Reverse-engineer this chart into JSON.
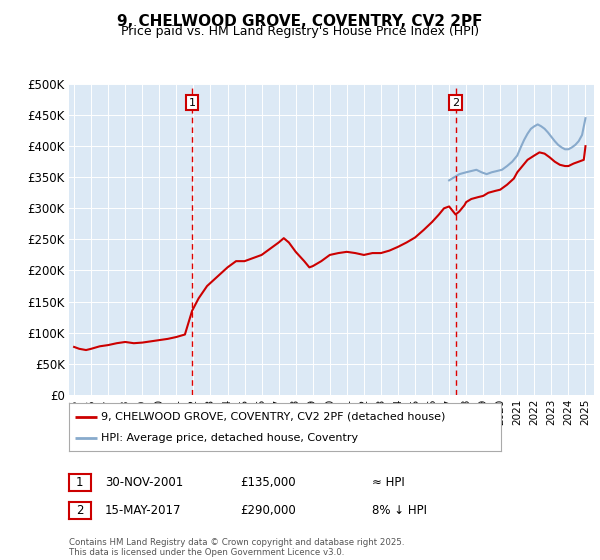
{
  "title": "9, CHELWOOD GROVE, COVENTRY, CV2 2PF",
  "subtitle": "Price paid vs. HM Land Registry's House Price Index (HPI)",
  "background_color": "#dce9f5",
  "plot_bg_color": "#dce9f5",
  "fig_bg_color": "#ffffff",
  "ylim": [
    0,
    500000
  ],
  "yticks": [
    0,
    50000,
    100000,
    150000,
    200000,
    250000,
    300000,
    350000,
    400000,
    450000,
    500000
  ],
  "ytick_labels": [
    "£0",
    "£50K",
    "£100K",
    "£150K",
    "£200K",
    "£250K",
    "£300K",
    "£350K",
    "£400K",
    "£450K",
    "£500K"
  ],
  "xlim_start": 1994.7,
  "xlim_end": 2025.5,
  "xticks": [
    1995,
    1996,
    1997,
    1998,
    1999,
    2000,
    2001,
    2002,
    2003,
    2004,
    2005,
    2006,
    2007,
    2008,
    2009,
    2010,
    2011,
    2012,
    2013,
    2014,
    2015,
    2016,
    2017,
    2018,
    2019,
    2020,
    2021,
    2022,
    2023,
    2024,
    2025
  ],
  "red_line_color": "#cc0000",
  "blue_line_color": "#88aacc",
  "vline_color": "#dd0000",
  "marker1_x": 2001.92,
  "marker2_x": 2017.38,
  "red_price_data": [
    [
      1995.0,
      77000
    ],
    [
      1995.3,
      74000
    ],
    [
      1995.7,
      72000
    ],
    [
      1996.0,
      74000
    ],
    [
      1996.5,
      78000
    ],
    [
      1997.0,
      80000
    ],
    [
      1997.5,
      83000
    ],
    [
      1998.0,
      85000
    ],
    [
      1998.5,
      83000
    ],
    [
      1999.0,
      84000
    ],
    [
      1999.5,
      86000
    ],
    [
      2000.0,
      88000
    ],
    [
      2000.5,
      90000
    ],
    [
      2001.0,
      93000
    ],
    [
      2001.5,
      97000
    ],
    [
      2001.92,
      135000
    ],
    [
      2002.3,
      155000
    ],
    [
      2002.8,
      175000
    ],
    [
      2003.2,
      185000
    ],
    [
      2003.6,
      195000
    ],
    [
      2004.0,
      205000
    ],
    [
      2004.5,
      215000
    ],
    [
      2005.0,
      215000
    ],
    [
      2005.5,
      220000
    ],
    [
      2006.0,
      225000
    ],
    [
      2006.5,
      235000
    ],
    [
      2007.0,
      245000
    ],
    [
      2007.3,
      252000
    ],
    [
      2007.6,
      245000
    ],
    [
      2008.0,
      230000
    ],
    [
      2008.5,
      215000
    ],
    [
      2008.8,
      205000
    ],
    [
      2009.0,
      207000
    ],
    [
      2009.5,
      215000
    ],
    [
      2010.0,
      225000
    ],
    [
      2010.5,
      228000
    ],
    [
      2011.0,
      230000
    ],
    [
      2011.5,
      228000
    ],
    [
      2012.0,
      225000
    ],
    [
      2012.5,
      228000
    ],
    [
      2013.0,
      228000
    ],
    [
      2013.5,
      232000
    ],
    [
      2014.0,
      238000
    ],
    [
      2014.5,
      245000
    ],
    [
      2015.0,
      253000
    ],
    [
      2015.5,
      265000
    ],
    [
      2016.0,
      278000
    ],
    [
      2016.4,
      290000
    ],
    [
      2016.7,
      300000
    ],
    [
      2017.0,
      303000
    ],
    [
      2017.38,
      290000
    ],
    [
      2017.6,
      295000
    ],
    [
      2017.9,
      305000
    ],
    [
      2018.0,
      310000
    ],
    [
      2018.3,
      315000
    ],
    [
      2018.7,
      318000
    ],
    [
      2019.0,
      320000
    ],
    [
      2019.3,
      325000
    ],
    [
      2019.7,
      328000
    ],
    [
      2020.0,
      330000
    ],
    [
      2020.4,
      338000
    ],
    [
      2020.8,
      348000
    ],
    [
      2021.0,
      358000
    ],
    [
      2021.3,
      368000
    ],
    [
      2021.6,
      378000
    ],
    [
      2022.0,
      385000
    ],
    [
      2022.3,
      390000
    ],
    [
      2022.6,
      388000
    ],
    [
      2022.9,
      382000
    ],
    [
      2023.2,
      375000
    ],
    [
      2023.5,
      370000
    ],
    [
      2023.8,
      368000
    ],
    [
      2024.0,
      368000
    ],
    [
      2024.3,
      372000
    ],
    [
      2024.6,
      375000
    ],
    [
      2024.9,
      378000
    ],
    [
      2025.0,
      400000
    ]
  ],
  "blue_hpi_data": [
    [
      2017.0,
      345000
    ],
    [
      2017.3,
      350000
    ],
    [
      2017.6,
      355000
    ],
    [
      2018.0,
      358000
    ],
    [
      2018.3,
      360000
    ],
    [
      2018.6,
      362000
    ],
    [
      2018.9,
      358000
    ],
    [
      2019.2,
      355000
    ],
    [
      2019.5,
      358000
    ],
    [
      2019.8,
      360000
    ],
    [
      2020.1,
      362000
    ],
    [
      2020.4,
      368000
    ],
    [
      2020.7,
      375000
    ],
    [
      2021.0,
      385000
    ],
    [
      2021.2,
      398000
    ],
    [
      2021.4,
      410000
    ],
    [
      2021.6,
      420000
    ],
    [
      2021.8,
      428000
    ],
    [
      2022.0,
      432000
    ],
    [
      2022.2,
      435000
    ],
    [
      2022.4,
      432000
    ],
    [
      2022.6,
      428000
    ],
    [
      2022.8,
      422000
    ],
    [
      2023.0,
      415000
    ],
    [
      2023.2,
      408000
    ],
    [
      2023.4,
      402000
    ],
    [
      2023.6,
      398000
    ],
    [
      2023.8,
      395000
    ],
    [
      2024.0,
      395000
    ],
    [
      2024.2,
      398000
    ],
    [
      2024.4,
      402000
    ],
    [
      2024.6,
      408000
    ],
    [
      2024.8,
      418000
    ],
    [
      2025.0,
      445000
    ]
  ],
  "legend_entries": [
    {
      "label": "9, CHELWOOD GROVE, COVENTRY, CV2 2PF (detached house)",
      "color": "#cc0000"
    },
    {
      "label": "HPI: Average price, detached house, Coventry",
      "color": "#88aacc"
    }
  ],
  "annotation1_label": "1",
  "annotation1_date": "30-NOV-2001",
  "annotation1_price": "£135,000",
  "annotation1_hpi": "≈ HPI",
  "annotation2_label": "2",
  "annotation2_date": "15-MAY-2017",
  "annotation2_price": "£290,000",
  "annotation2_hpi": "8% ↓ HPI",
  "footer": "Contains HM Land Registry data © Crown copyright and database right 2025.\nThis data is licensed under the Open Government Licence v3.0."
}
